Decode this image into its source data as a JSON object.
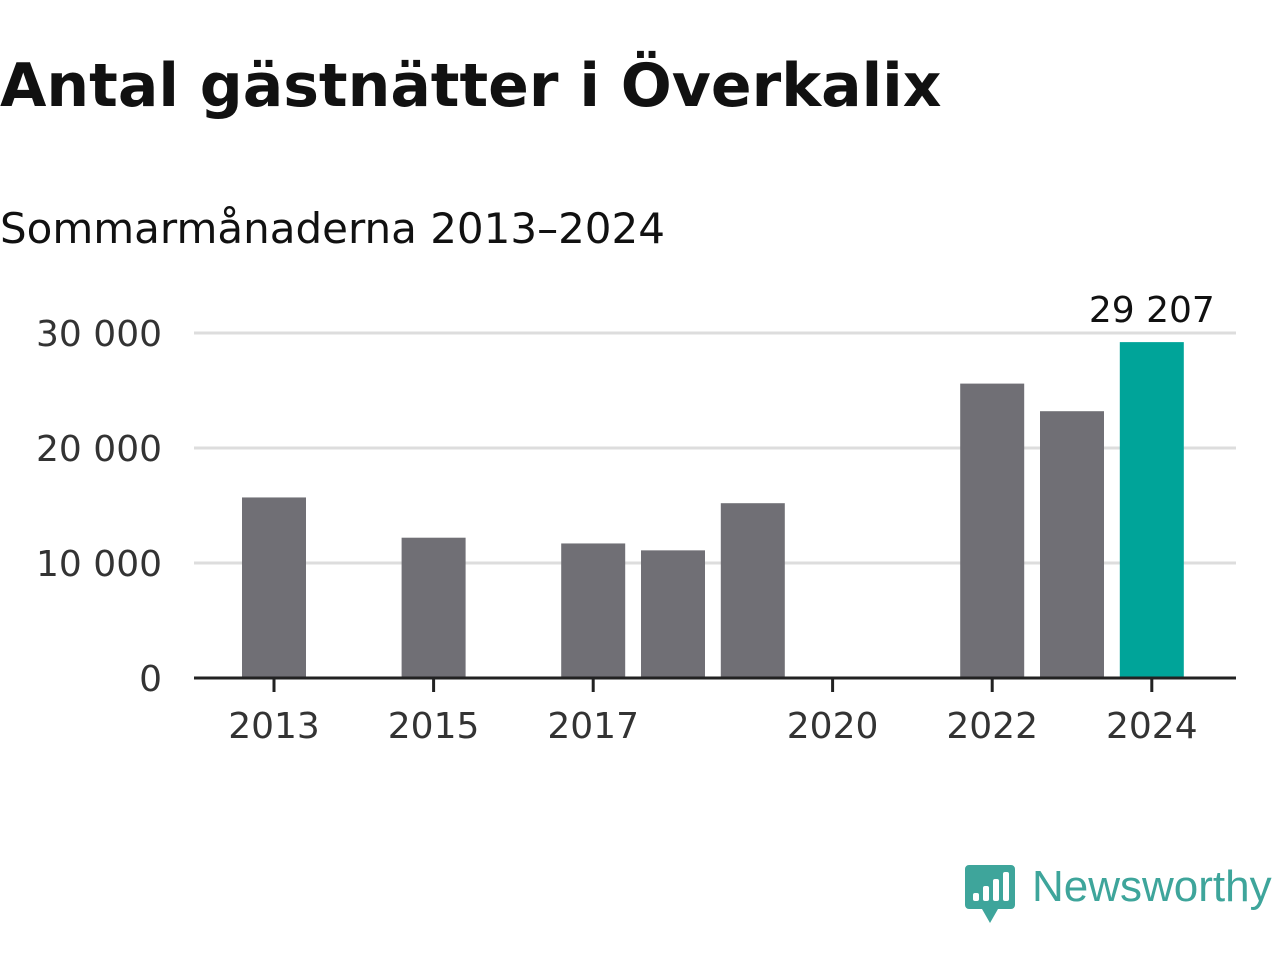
{
  "chart_data": {
    "type": "bar",
    "title": "Antal gästnätter i Överkalix",
    "subtitle": "Sommarmånaderna 2013–2024",
    "x": [
      2013,
      2014,
      2015,
      2016,
      2017,
      2018,
      2019,
      2020,
      2021,
      2022,
      2023,
      2024
    ],
    "values": [
      15700,
      null,
      12200,
      null,
      11700,
      11100,
      15200,
      null,
      null,
      25600,
      23200,
      29207
    ],
    "x_tick_labels": [
      "2013",
      "2015",
      "2017",
      "2020",
      "2022",
      "2024"
    ],
    "x_tick_values": [
      2013,
      2015,
      2017,
      2020,
      2022,
      2024
    ],
    "y_ticks": [
      0,
      10000,
      20000,
      30000
    ],
    "y_tick_labels": [
      "0",
      "10 000",
      "20 000",
      "30 000"
    ],
    "ylim": [
      0,
      30000
    ],
    "xlabel": "",
    "ylabel": "",
    "grid": true,
    "highlight": {
      "x": 2024,
      "label": "29 207",
      "color": "#00a499"
    },
    "bar_color": "#706f75",
    "grid_color": "#dddddd",
    "axis_color": "#222222"
  },
  "brand": {
    "name": "Newsworthy",
    "color": "#3ea59b",
    "icon": "newsworthy-logo-icon"
  }
}
